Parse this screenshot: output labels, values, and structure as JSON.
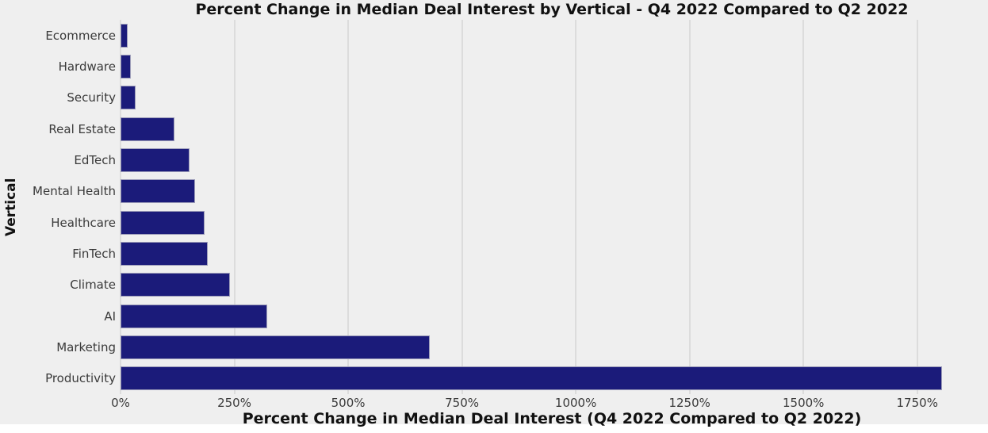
{
  "figure": {
    "title": "Percent Change in Median Deal Interest by Vertical - Q4 2022 Compared to Q2 2022",
    "xlabel": "Percent Change in Median Deal Interest (Q4 2022 Compared to Q2 2022)",
    "ylabel": "Vertical"
  },
  "chart_data": {
    "type": "bar",
    "orientation": "horizontal",
    "title": "Percent Change in Median Deal Interest by Vertical - Q4 2022 Compared to Q2 2022",
    "xlabel": "Percent Change in Median Deal Interest (Q4 2022 Compared to Q2 2022)",
    "ylabel": "Vertical",
    "categories": [
      "Ecommerce",
      "Hardware",
      "Security",
      "Real Estate",
      "EdTech",
      "Mental Health",
      "Healthcare",
      "FinTech",
      "Climate",
      "AI",
      "Marketing",
      "Productivity"
    ],
    "values": [
      15,
      22,
      33,
      118,
      152,
      163,
      185,
      192,
      240,
      323,
      680,
      1805
    ],
    "value_unit": "%",
    "xticks": [
      0,
      250,
      500,
      750,
      1000,
      1250,
      1500,
      1750
    ],
    "xtick_labels": [
      "0%",
      "250%",
      "500%",
      "750%",
      "1000%",
      "1250%",
      "1500%",
      "1750%"
    ],
    "xlim": [
      0,
      1895
    ],
    "grid": true,
    "legend": "none",
    "bar_color": "#1b1b7a",
    "background_color": "#efefef",
    "gridline_color": "#dcdcdc"
  }
}
